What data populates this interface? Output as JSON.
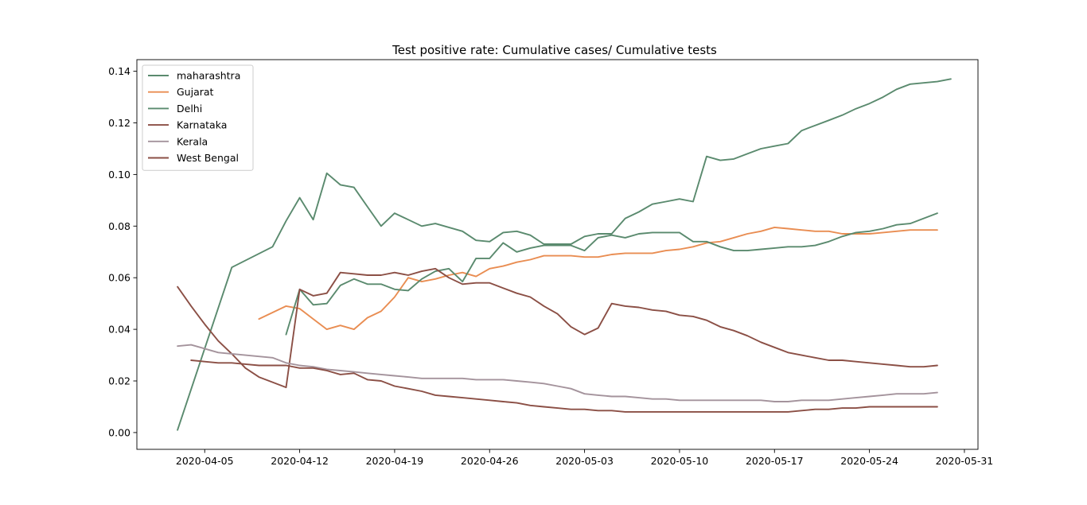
{
  "chart_data": {
    "type": "line",
    "title": "Test positive rate: Cumulative cases/ Cumulative tests",
    "xlabel": "",
    "ylabel": "",
    "x_start_date": "2020-04-01",
    "x_range_dates": [
      "2020-03-31",
      "2020-06-01"
    ],
    "ylim": [
      -0.0065,
      0.1445
    ],
    "grid": false,
    "legend_position": "top-left",
    "x_ticks": [
      {
        "date": "2020-04-05",
        "label": "2020-04-05"
      },
      {
        "date": "2020-04-12",
        "label": "2020-04-12"
      },
      {
        "date": "2020-04-19",
        "label": "2020-04-19"
      },
      {
        "date": "2020-04-26",
        "label": "2020-04-26"
      },
      {
        "date": "2020-05-03",
        "label": "2020-05-03"
      },
      {
        "date": "2020-05-10",
        "label": "2020-05-10"
      },
      {
        "date": "2020-05-17",
        "label": "2020-05-17"
      },
      {
        "date": "2020-05-24",
        "label": "2020-05-24"
      },
      {
        "date": "2020-05-31",
        "label": "2020-05-31"
      }
    ],
    "y_ticks": [
      {
        "value": 0.0,
        "label": "0.00"
      },
      {
        "value": 0.02,
        "label": "0.02"
      },
      {
        "value": 0.04,
        "label": "0.04"
      },
      {
        "value": 0.06,
        "label": "0.06"
      },
      {
        "value": 0.08,
        "label": "0.08"
      },
      {
        "value": 0.1,
        "label": "0.10"
      },
      {
        "value": 0.12,
        "label": "0.12"
      },
      {
        "value": 0.14,
        "label": "0.14"
      }
    ],
    "series": [
      {
        "name": "maharashtra",
        "color": "#5a8a6e",
        "x": [
          2,
          6,
          9,
          10,
          11,
          12,
          13,
          14,
          15,
          16,
          17,
          18,
          19,
          20,
          21,
          22,
          23,
          24,
          25,
          26,
          27,
          28,
          29,
          30,
          31,
          32,
          33,
          34,
          35,
          36,
          37,
          38,
          39,
          40,
          41,
          42,
          43,
          44,
          45,
          46,
          47,
          48,
          49,
          50,
          51,
          52,
          53,
          54,
          55,
          56,
          57,
          58,
          59
        ],
        "y": [
          0.001,
          0.064,
          0.072,
          0.082,
          0.091,
          0.0825,
          0.1005,
          0.096,
          0.095,
          0.0875,
          0.08,
          0.085,
          0.0825,
          0.08,
          0.081,
          0.0795,
          0.078,
          0.0745,
          0.074,
          0.0775,
          0.078,
          0.0765,
          0.073,
          0.073,
          0.073,
          0.076,
          0.077,
          0.077,
          0.083,
          0.0855,
          0.0885,
          0.0895,
          0.0905,
          0.0895,
          0.107,
          0.1055,
          0.106,
          0.108,
          0.11,
          0.111,
          0.112,
          0.117,
          0.119,
          0.121,
          0.123,
          0.1255,
          0.1275,
          0.13,
          0.133,
          0.135,
          0.1355,
          0.136,
          0.137
        ]
      },
      {
        "name": "Gujarat",
        "color": "#e98d52",
        "x": [
          8,
          10,
          11,
          12,
          13,
          14,
          15,
          16,
          17,
          18,
          19,
          20,
          21,
          22,
          23,
          24,
          25,
          26,
          27,
          28,
          29,
          30,
          31,
          32,
          33,
          34,
          35,
          36,
          37,
          38,
          39,
          40,
          41,
          42,
          43,
          44,
          45,
          46,
          47,
          48,
          49,
          50,
          51,
          52,
          53,
          54,
          55,
          56,
          57,
          58
        ],
        "y": [
          0.044,
          0.049,
          0.048,
          0.044,
          0.04,
          0.0415,
          0.04,
          0.0445,
          0.047,
          0.0525,
          0.06,
          0.0585,
          0.0595,
          0.061,
          0.062,
          0.0605,
          0.0635,
          0.0645,
          0.066,
          0.067,
          0.0685,
          0.0685,
          0.0685,
          0.068,
          0.068,
          0.069,
          0.0695,
          0.0695,
          0.0695,
          0.0705,
          0.071,
          0.072,
          0.0735,
          0.074,
          0.0755,
          0.077,
          0.078,
          0.0795,
          0.079,
          0.0785,
          0.078,
          0.078,
          0.077,
          0.077,
          0.077,
          0.0775,
          0.078,
          0.0785,
          0.0785,
          0.0785
        ]
      },
      {
        "name": "Delhi",
        "color": "#5a8a6e",
        "x": [
          10,
          11,
          12,
          13,
          14,
          15,
          16,
          17,
          18,
          19,
          20,
          21,
          22,
          23,
          24,
          25,
          26,
          27,
          28,
          29,
          30,
          31,
          32,
          33,
          34,
          35,
          36,
          37,
          38,
          39,
          40,
          41,
          42,
          43,
          44,
          45,
          46,
          47,
          48,
          49,
          50,
          51,
          52,
          53,
          54,
          55,
          56,
          57,
          58
        ],
        "y": [
          0.038,
          0.0555,
          0.0495,
          0.05,
          0.057,
          0.0595,
          0.0575,
          0.0575,
          0.0555,
          0.055,
          0.0595,
          0.0625,
          0.0635,
          0.0585,
          0.0675,
          0.0675,
          0.0735,
          0.07,
          0.0715,
          0.0725,
          0.0725,
          0.0725,
          0.0705,
          0.0755,
          0.0765,
          0.0755,
          0.077,
          0.0775,
          0.0775,
          0.0775,
          0.074,
          0.074,
          0.072,
          0.0705,
          0.0705,
          0.071,
          0.0715,
          0.072,
          0.072,
          0.0725,
          0.074,
          0.076,
          0.0775,
          0.078,
          0.079,
          0.0805,
          0.081,
          0.083,
          0.085
        ]
      },
      {
        "name": "Karnataka",
        "color": "#8b4f45",
        "x": [
          2,
          3,
          4,
          5,
          6,
          7,
          8,
          9,
          10,
          11,
          12,
          13,
          14,
          15,
          16,
          17,
          18,
          19,
          20,
          21,
          22,
          23,
          24,
          25,
          26,
          27,
          28,
          29,
          30,
          31,
          32,
          33,
          34,
          35,
          36,
          37,
          38,
          39,
          40,
          41,
          42,
          43,
          44,
          45,
          46,
          47,
          48,
          49,
          50,
          51,
          52,
          53,
          54,
          55,
          56,
          57,
          58
        ],
        "y": [
          0.0565,
          0.049,
          0.042,
          0.0355,
          0.0305,
          0.025,
          0.0215,
          0.0195,
          0.0175,
          0.0555,
          0.053,
          0.054,
          0.062,
          0.0615,
          0.061,
          0.061,
          0.062,
          0.061,
          0.0625,
          0.0635,
          0.06,
          0.0575,
          0.058,
          0.058,
          0.056,
          0.054,
          0.0525,
          0.049,
          0.046,
          0.041,
          0.038,
          0.0405,
          0.05,
          0.049,
          0.0485,
          0.0475,
          0.047,
          0.0455,
          0.045,
          0.0435,
          0.041,
          0.0395,
          0.0375,
          0.035,
          0.033,
          0.031,
          0.03,
          0.029,
          0.028,
          0.028,
          0.0275,
          0.027,
          0.0265,
          0.026,
          0.0255,
          0.0255,
          0.026
        ]
      },
      {
        "name": "Kerala",
        "color": "#a4939c",
        "x": [
          2,
          3,
          4,
          5,
          6,
          7,
          8,
          9,
          10,
          11,
          12,
          13,
          14,
          15,
          16,
          17,
          18,
          19,
          20,
          21,
          22,
          23,
          24,
          25,
          26,
          27,
          28,
          29,
          30,
          31,
          32,
          33,
          34,
          35,
          36,
          37,
          38,
          39,
          40,
          41,
          42,
          43,
          44,
          45,
          46,
          47,
          48,
          49,
          50,
          51,
          52,
          53,
          54,
          55,
          56,
          57,
          58
        ],
        "y": [
          0.0335,
          0.034,
          0.0325,
          0.031,
          0.0305,
          0.03,
          0.0295,
          0.029,
          0.027,
          0.026,
          0.0255,
          0.0245,
          0.024,
          0.0235,
          0.023,
          0.0225,
          0.022,
          0.0215,
          0.021,
          0.021,
          0.021,
          0.021,
          0.0205,
          0.0205,
          0.0205,
          0.02,
          0.0195,
          0.019,
          0.018,
          0.017,
          0.015,
          0.0145,
          0.014,
          0.014,
          0.0135,
          0.013,
          0.013,
          0.0125,
          0.0125,
          0.0125,
          0.0125,
          0.0125,
          0.0125,
          0.0125,
          0.012,
          0.012,
          0.0125,
          0.0125,
          0.0125,
          0.013,
          0.0135,
          0.014,
          0.0145,
          0.015,
          0.015,
          0.015,
          0.0155
        ]
      },
      {
        "name": "West Bengal",
        "color": "#8b4f45",
        "x": [
          3,
          4,
          5,
          6,
          7,
          8,
          9,
          10,
          11,
          12,
          13,
          14,
          15,
          16,
          17,
          18,
          19,
          20,
          21,
          22,
          23,
          24,
          25,
          26,
          27,
          28,
          29,
          30,
          31,
          32,
          33,
          34,
          35,
          36,
          37,
          38,
          39,
          40,
          41,
          42,
          43,
          44,
          45,
          46,
          47,
          48,
          49,
          50,
          51,
          52,
          53,
          54,
          55,
          56,
          57,
          58
        ],
        "y": [
          0.028,
          0.0275,
          0.027,
          0.027,
          0.0265,
          0.026,
          0.026,
          0.026,
          0.025,
          0.025,
          0.024,
          0.0225,
          0.023,
          0.0205,
          0.02,
          0.018,
          0.017,
          0.016,
          0.0145,
          0.014,
          0.0135,
          0.013,
          0.0125,
          0.012,
          0.0115,
          0.0105,
          0.01,
          0.0095,
          0.009,
          0.009,
          0.0085,
          0.0085,
          0.008,
          0.008,
          0.008,
          0.008,
          0.008,
          0.008,
          0.008,
          0.008,
          0.008,
          0.008,
          0.008,
          0.008,
          0.008,
          0.0085,
          0.009,
          0.009,
          0.0095,
          0.0095,
          0.01,
          0.01,
          0.01,
          0.01,
          0.01,
          0.01
        ]
      }
    ]
  }
}
